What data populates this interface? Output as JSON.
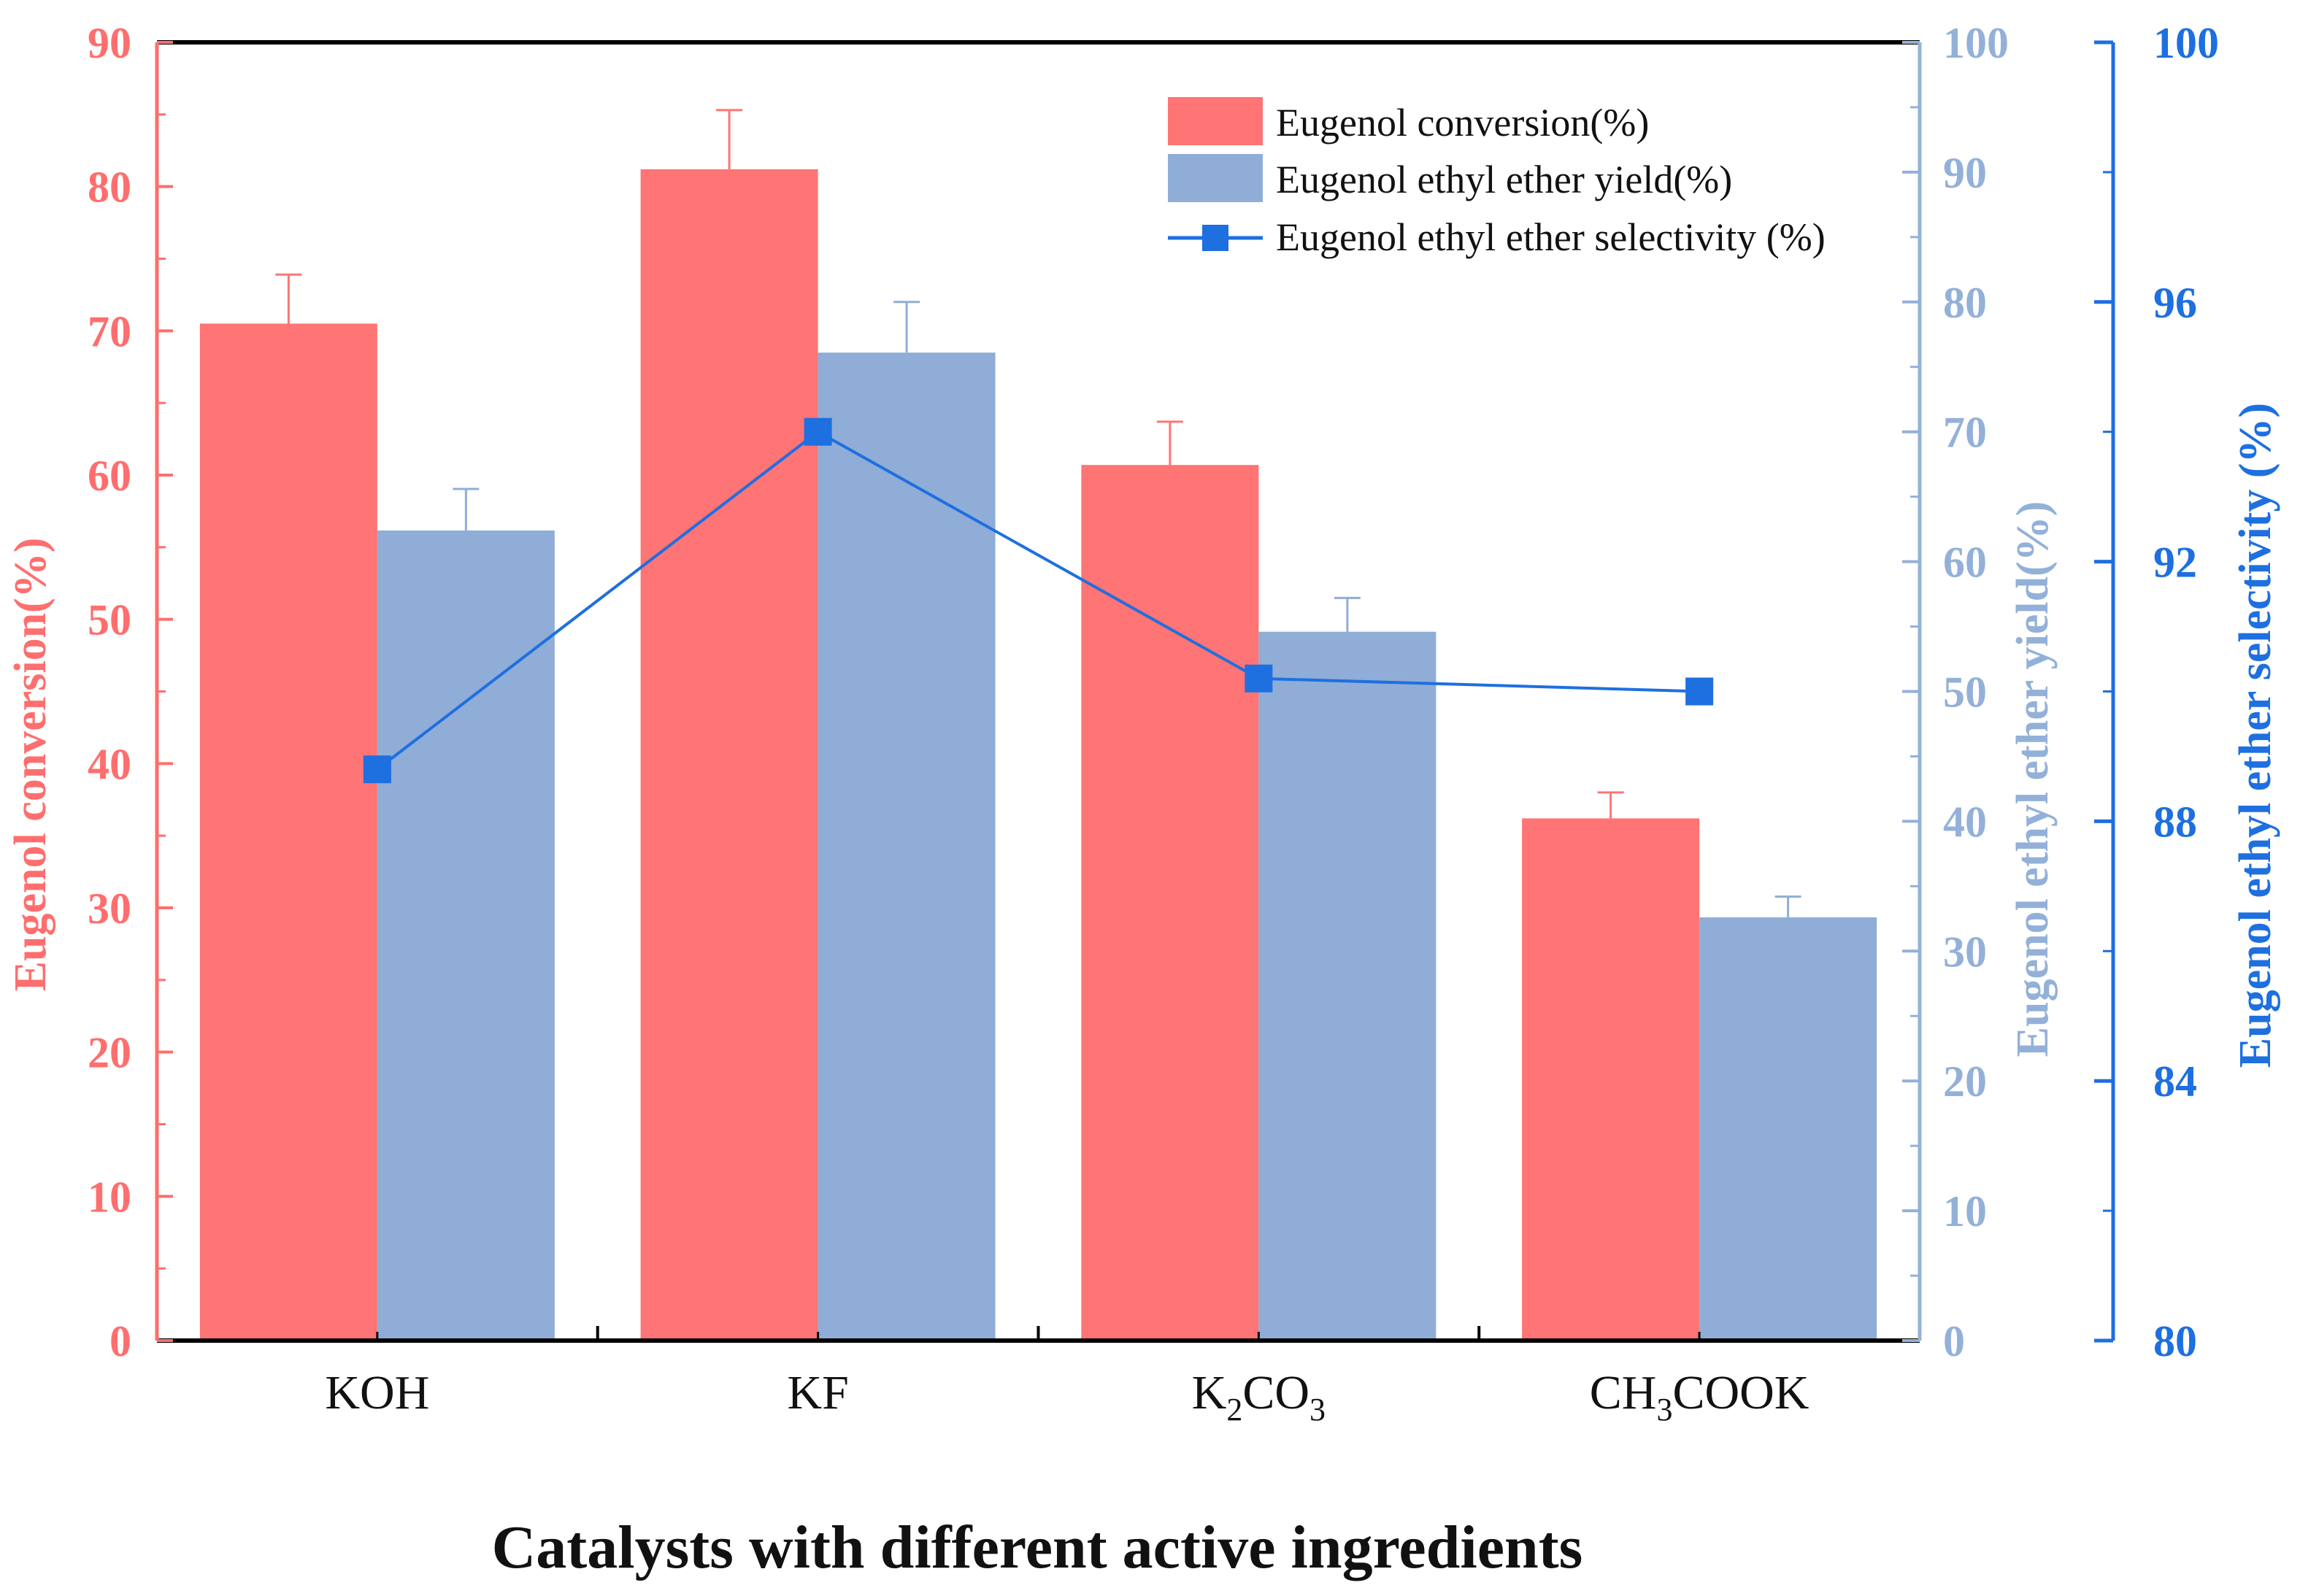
{
  "chart_data": {
    "type": "bar",
    "xlabel": "Catalysts with different active ingredients",
    "categories": [
      {
        "base": "KOH",
        "parts": [
          [
            "KOH",
            false
          ]
        ]
      },
      {
        "base": "KF",
        "parts": [
          [
            "KF",
            false
          ]
        ]
      },
      {
        "base": "K2CO3",
        "parts": [
          [
            "K",
            false
          ],
          [
            "2",
            true
          ],
          [
            "CO",
            false
          ],
          [
            "3",
            true
          ]
        ]
      },
      {
        "base": "CH3COOK",
        "parts": [
          [
            "CH",
            false
          ],
          [
            "3",
            true
          ],
          [
            "COOK",
            false
          ]
        ]
      }
    ],
    "axes": {
      "left": {
        "label": "Eugenol conversion(%)",
        "ylim": [
          0,
          90
        ],
        "ticks": [
          0,
          10,
          20,
          30,
          40,
          50,
          60,
          70,
          80,
          90
        ],
        "color": "#ff6e6e"
      },
      "right1": {
        "label": "Eugenol ethyl ether yield(%)",
        "ylim": [
          0,
          100
        ],
        "ticks": [
          0,
          10,
          20,
          30,
          40,
          50,
          60,
          70,
          80,
          90,
          100
        ],
        "color": "#93b1d8"
      },
      "right2": {
        "label": "Eugenol ethyl ether selectivity (%)",
        "ylim": [
          80,
          100
        ],
        "ticks": [
          80,
          84,
          88,
          92,
          96,
          100
        ],
        "color": "#1e6fe0"
      }
    },
    "series": [
      {
        "name": "Eugenol conversion(%)",
        "kind": "bar",
        "axis": "left",
        "color": "#ff7474",
        "values": [
          70.5,
          81.2,
          60.7,
          36.2
        ],
        "errors": [
          3.4,
          4.1,
          3.0,
          1.8
        ]
      },
      {
        "name": "Eugenol ethyl ether yield(%)",
        "kind": "bar",
        "axis": "right1",
        "color": "#8fadd6",
        "values": [
          62.4,
          76.1,
          54.6,
          32.6
        ],
        "errors": [
          3.2,
          3.9,
          2.6,
          1.6
        ]
      },
      {
        "name": "Eugenol ethyl ether selectivity (%)",
        "kind": "line",
        "axis": "right2",
        "color": "#1e6fe0",
        "values": [
          88.8,
          94.0,
          90.2,
          90.0
        ]
      }
    ],
    "legend": {
      "position": "top-right"
    }
  }
}
